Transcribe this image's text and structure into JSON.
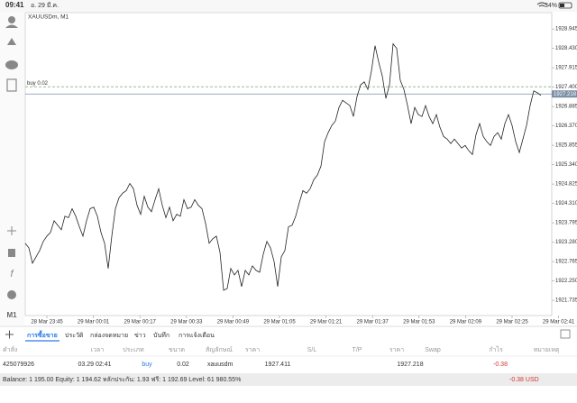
{
  "status_bar": {
    "time": "09:41",
    "date": "อ. 29 มี.ค.",
    "battery": "34%"
  },
  "sidebar": {
    "timeframe": "M1"
  },
  "chart_data": {
    "type": "line",
    "title": "XAUUSDm, M1",
    "color": "#222222",
    "xticks": [
      "28 Mar 23:45",
      "29 Mar 00:01",
      "29 Mar 00:17",
      "29 Mar 00:33",
      "29 Mar 00:49",
      "29 Mar 01:05",
      "29 Mar 01:21",
      "29 Mar 01:37",
      "29 Mar 01:53",
      "29 Mar 02:09",
      "29 Mar 02:25",
      "29 Mar 02:41"
    ],
    "values": [
      1923.25,
      1923.13,
      1922.72,
      1922.89,
      1923.06,
      1923.3,
      1923.44,
      1923.54,
      1923.85,
      1923.73,
      1923.61,
      1923.97,
      1923.93,
      1924.17,
      1923.97,
      1923.69,
      1923.44,
      1923.85,
      1924.17,
      1924.21,
      1923.97,
      1923.54,
      1923.25,
      1922.58,
      1923.44,
      1924.17,
      1924.46,
      1924.58,
      1924.65,
      1924.84,
      1924.7,
      1924.26,
      1924.02,
      1924.5,
      1924.21,
      1924.09,
      1924.41,
      1924.7,
      1924.26,
      1923.93,
      1924.21,
      1923.85,
      1924.02,
      1923.97,
      1924.41,
      1924.17,
      1924.21,
      1924.41,
      1924.26,
      1924.17,
      1923.78,
      1923.25,
      1923.37,
      1923.44,
      1923.01,
      1922.0,
      1922.05,
      1922.58,
      1922.41,
      1922.53,
      1922.1,
      1922.53,
      1922.41,
      1922.65,
      1922.53,
      1922.48,
      1922.96,
      1923.3,
      1923.13,
      1922.77,
      1922.1,
      1922.89,
      1923.06,
      1923.69,
      1923.73,
      1923.97,
      1924.33,
      1924.65,
      1924.58,
      1924.7,
      1924.94,
      1925.06,
      1925.3,
      1925.95,
      1926.19,
      1926.38,
      1926.5,
      1926.86,
      1927.05,
      1926.98,
      1926.91,
      1926.62,
      1927.15,
      1927.46,
      1927.54,
      1927.34,
      1927.83,
      1928.5,
      1928.07,
      1927.7,
      1927.1,
      1927.46,
      1928.55,
      1928.43,
      1927.58,
      1927.34,
      1926.91,
      1926.43,
      1926.86,
      1926.67,
      1926.62,
      1926.91,
      1926.62,
      1926.43,
      1926.67,
      1926.33,
      1926.09,
      1926.02,
      1925.9,
      1926.02,
      1925.9,
      1925.78,
      1925.85,
      1925.71,
      1925.61,
      1926.14,
      1926.43,
      1926.09,
      1925.95,
      1925.85,
      1926.09,
      1926.19,
      1926.02,
      1926.43,
      1926.67,
      1926.38,
      1925.95,
      1925.66,
      1926.02,
      1926.38,
      1926.91,
      1927.3,
      1927.25,
      1927.18
    ],
    "ylim": [
      1921.33,
      1929.38
    ],
    "yticks": [
      1928.945,
      {
        "value": 1928.43,
        "label": "1928.430"
      },
      1927.915,
      {
        "value": 1927.4,
        "label": "1927.400"
      },
      1926.885,
      {
        "value": 1926.37,
        "label": "1926.370"
      },
      1925.855,
      {
        "value": 1925.34,
        "label": "1925.340"
      },
      1924.825,
      {
        "value": 1924.31,
        "label": "1924.310"
      },
      1923.795,
      {
        "value": 1923.28,
        "label": "1923.280"
      },
      1922.765,
      {
        "value": 1922.25,
        "label": "1922.250"
      },
      1921.735
    ],
    "buy_line": {
      "value": 1927.411,
      "label": "buy 0.02",
      "color": "#5a9a5a"
    },
    "price_line": {
      "value": 1927.218,
      "color": "#7c8fa6"
    }
  },
  "tabs": [
    "การซื้อขาย",
    "ประวัติ",
    "กล่องจดหมาย",
    "ข่าว",
    "บันทึก",
    "การแจ้งเตือน"
  ],
  "table": {
    "header": [
      "คำสั่ง",
      "เวลา",
      "ประเภท",
      "ขนาด",
      "สัญลักษณ์",
      "ราคา",
      "S/L",
      "T/P",
      "ราคา",
      "Swap",
      "กำไร",
      "หมายเหตุ"
    ],
    "rows": [
      [
        "425079926",
        "03.29 02:41",
        "buy",
        "0.02",
        "xauusdm",
        "1927.411",
        "",
        "",
        "1927.218",
        "",
        "-0.38",
        ""
      ]
    ]
  },
  "balance": {
    "text": "Balance: 1 195.00 Equity: 1 194.62 หลักประกัน: 1.93 ฟรี: 1 192.69 Level: 61 980.55%",
    "total": "-0.38  USD"
  }
}
